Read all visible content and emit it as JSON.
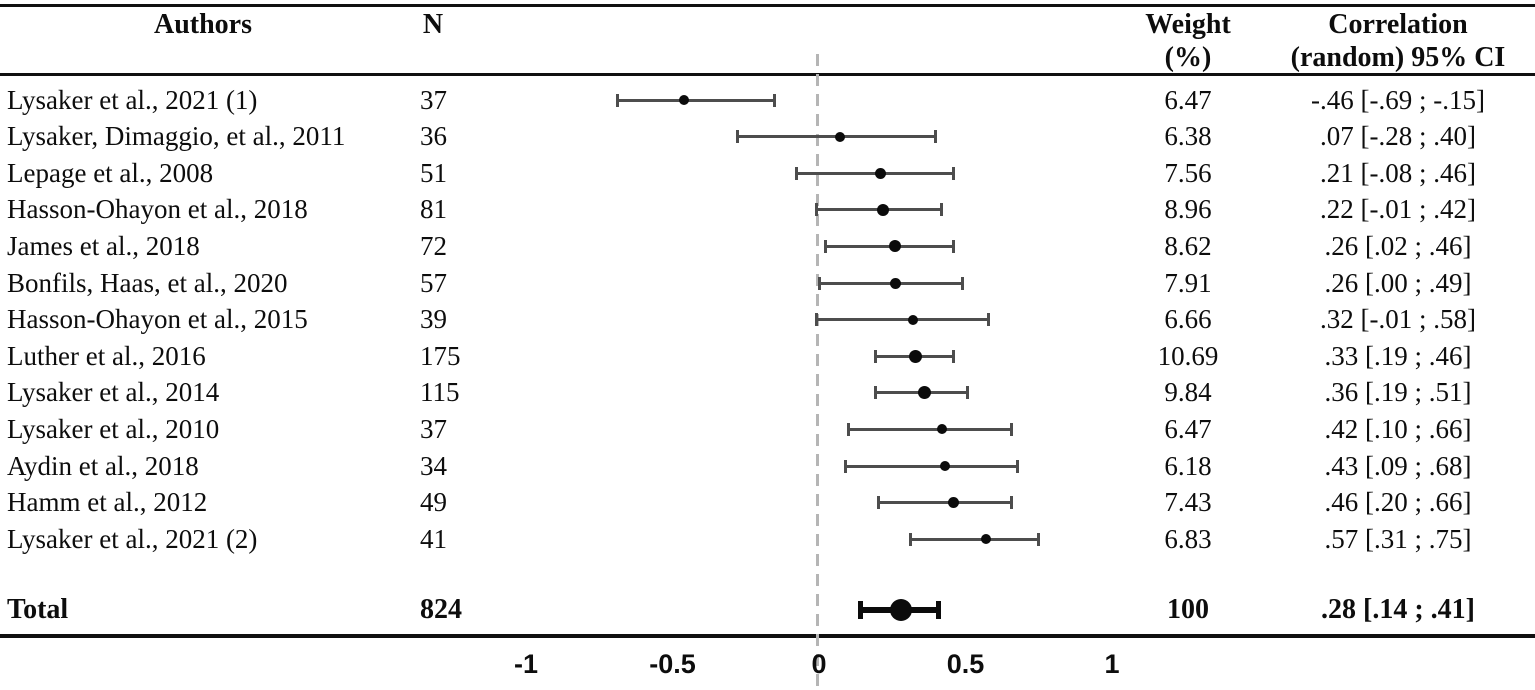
{
  "header": {
    "authors": "Authors",
    "n": "N",
    "weight": [
      "Weight",
      "(%)"
    ],
    "correlation": [
      "Correlation",
      "(random) 95% CI"
    ]
  },
  "colors": {
    "background": "#ffffff",
    "text": "#0d0d0d",
    "rule": "#101010",
    "whisker": "#4d4d4d",
    "point": "#0b0b0b",
    "zero_line": "#b5b5b5"
  },
  "chart_data": {
    "type": "forest",
    "x_axis": {
      "range": [
        -1,
        1
      ],
      "ticks": [
        -1,
        -0.5,
        0,
        0.5,
        1
      ],
      "tick_labels": [
        "-1",
        "-0.5",
        "0",
        "0.5",
        "1"
      ],
      "zero_reference_line": 0
    },
    "studies": [
      {
        "author": "Lysaker et al., 2021 (1)",
        "n": "37",
        "weight": "6.47",
        "r": -0.46,
        "lo": -0.69,
        "hi": -0.15,
        "ci_text": "-.46 [-.69 ; -.15]"
      },
      {
        "author": "Lysaker, Dimaggio, et al., 2011",
        "n": "36",
        "weight": "6.38",
        "r": 0.07,
        "lo": -0.28,
        "hi": 0.4,
        "ci_text": ".07 [-.28 ; .40]"
      },
      {
        "author": "Lepage et al., 2008",
        "n": "51",
        "weight": "7.56",
        "r": 0.21,
        "lo": -0.08,
        "hi": 0.46,
        "ci_text": ".21 [-.08 ; .46]"
      },
      {
        "author": "Hasson-Ohayon et al., 2018",
        "n": "81",
        "weight": "8.96",
        "r": 0.22,
        "lo": -0.01,
        "hi": 0.42,
        "ci_text": ".22 [-.01 ; .42]"
      },
      {
        "author": "James et al., 2018",
        "n": "72",
        "weight": "8.62",
        "r": 0.26,
        "lo": 0.02,
        "hi": 0.46,
        "ci_text": ".26 [.02 ; .46]"
      },
      {
        "author": "Bonfils, Haas, et al., 2020",
        "n": "57",
        "weight": "7.91",
        "r": 0.26,
        "lo": 0.0,
        "hi": 0.49,
        "ci_text": ".26 [.00 ; .49]"
      },
      {
        "author": "Hasson-Ohayon et al., 2015",
        "n": "39",
        "weight": "6.66",
        "r": 0.32,
        "lo": -0.01,
        "hi": 0.58,
        "ci_text": ".32 [-.01 ; .58]"
      },
      {
        "author": "Luther et al., 2016",
        "n": "175",
        "weight": "10.69",
        "r": 0.33,
        "lo": 0.19,
        "hi": 0.46,
        "ci_text": ".33 [.19 ; .46]"
      },
      {
        "author": "Lysaker et al., 2014",
        "n": "115",
        "weight": "9.84",
        "r": 0.36,
        "lo": 0.19,
        "hi": 0.51,
        "ci_text": ".36 [.19 ; .51]"
      },
      {
        "author": "Lysaker et al., 2010",
        "n": "37",
        "weight": "6.47",
        "r": 0.42,
        "lo": 0.1,
        "hi": 0.66,
        "ci_text": ".42 [.10 ; .66]"
      },
      {
        "author": "Aydin et al., 2018",
        "n": "34",
        "weight": "6.18",
        "r": 0.43,
        "lo": 0.09,
        "hi": 0.68,
        "ci_text": ".43 [.09 ; .68]"
      },
      {
        "author": "Hamm et al., 2012",
        "n": "49",
        "weight": "7.43",
        "r": 0.46,
        "lo": 0.2,
        "hi": 0.66,
        "ci_text": ".46 [.20 ; .66]"
      },
      {
        "author": "Lysaker et al., 2021 (2)",
        "n": "41",
        "weight": "6.83",
        "r": 0.57,
        "lo": 0.31,
        "hi": 0.75,
        "ci_text": ".57 [.31 ; .75]"
      }
    ],
    "total": {
      "label": "Total",
      "n": "824",
      "weight": "100",
      "r": 0.28,
      "lo": 0.14,
      "hi": 0.41,
      "ci_text": ".28 [.14 ; .41]"
    }
  }
}
